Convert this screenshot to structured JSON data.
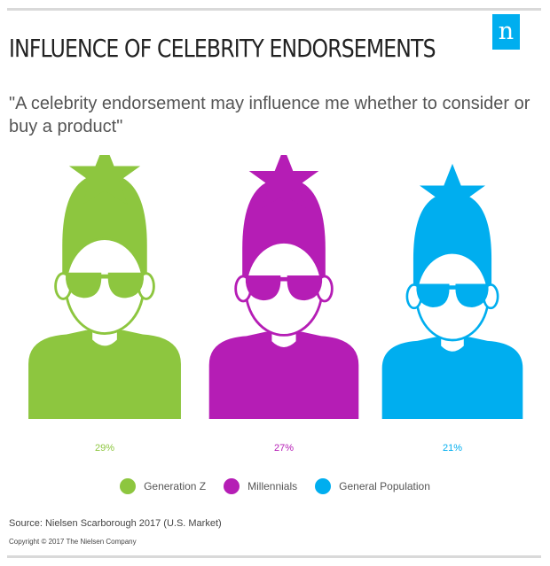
{
  "header": {
    "title": "INFLUENCE OF CELEBRITY ENDORSEMENTS",
    "subtitle": "\"A celebrity endorsement may influence me whether to consider or buy a product\"",
    "logo_letter": "n"
  },
  "chart_data": {
    "type": "bar",
    "title": "INFLUENCE OF CELEBRITY ENDORSEMENTS",
    "categories": [
      "Generation Z",
      "Millennials",
      "General Population"
    ],
    "values": [
      29,
      27,
      21
    ],
    "value_labels": [
      "29%",
      "27%",
      "21%"
    ],
    "colors": [
      "#8dc63f",
      "#b51db5",
      "#00aeef"
    ],
    "legend": [
      "Generation Z",
      "Millennials",
      "General Population"
    ],
    "legend_position": "bottom",
    "mark": "person-icon"
  },
  "footer": {
    "source": "Source: Nielsen Scarborough 2017 (U.S. Market)",
    "copyright": "Copyright © 2017 The Nielsen Company"
  }
}
